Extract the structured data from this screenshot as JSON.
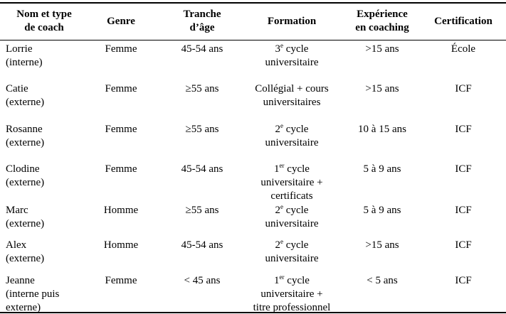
{
  "table": {
    "header": [
      [
        "Nom et type",
        "de coach"
      ],
      [
        "Genre"
      ],
      [
        "Tranche",
        "d’âge"
      ],
      [
        "Formation"
      ],
      [
        "Expérience",
        "en coaching"
      ],
      [
        "Certification"
      ]
    ],
    "rows": [
      {
        "name": [
          "Lorrie",
          "(interne)"
        ],
        "genre": "Femme",
        "age": "45-54 ans",
        "formation": {
          "ordinal": "3",
          "suffix": "e",
          "lines": [
            "cycle",
            "universitaire"
          ]
        },
        "experience": ">15 ans",
        "certification": "École"
      },
      {
        "name": [
          "Catie",
          "(externe)"
        ],
        "genre": "Femme",
        "age": "≥55 ans",
        "formation": {
          "lines": [
            "Collégial + cours",
            "universitaires"
          ]
        },
        "experience": ">15 ans",
        "certification": "ICF"
      },
      {
        "name": [
          "Rosanne",
          "(externe)"
        ],
        "genre": "Femme",
        "age": "≥55 ans",
        "formation": {
          "ordinal": "2",
          "suffix": "e",
          "lines": [
            "cycle",
            "universitaire"
          ]
        },
        "experience": "10 à 15 ans",
        "certification": "ICF"
      },
      {
        "name": [
          "Clodine",
          "(externe)"
        ],
        "genre": "Femme",
        "age": "45-54 ans",
        "formation": {
          "ordinal": "1",
          "suffix": "er",
          "lines": [
            "cycle",
            "universitaire +",
            "certificats"
          ]
        },
        "experience": "5 à 9 ans",
        "certification": "ICF"
      },
      {
        "name": [
          "Marc",
          "(externe)"
        ],
        "genre": "Homme",
        "age": "≥55 ans",
        "formation": {
          "ordinal": "2",
          "suffix": "e",
          "lines": [
            "cycle",
            "universitaire"
          ]
        },
        "experience": "5 à 9 ans",
        "certification": "ICF"
      },
      {
        "name": [
          "Alex",
          "(externe)"
        ],
        "genre": "Homme",
        "age": "45-54 ans",
        "formation": {
          "ordinal": "2",
          "suffix": "e",
          "lines": [
            "cycle",
            "universitaire"
          ]
        },
        "experience": ">15 ans",
        "certification": "ICF"
      },
      {
        "name": [
          "Jeanne",
          "(interne puis",
          "externe)"
        ],
        "genre": "Femme",
        "age": "< 45 ans",
        "formation": {
          "ordinal": "1",
          "suffix": "er",
          "lines": [
            "cycle",
            "universitaire +",
            "titre professionnel"
          ]
        },
        "experience": "< 5 ans",
        "certification": "ICF"
      }
    ]
  }
}
